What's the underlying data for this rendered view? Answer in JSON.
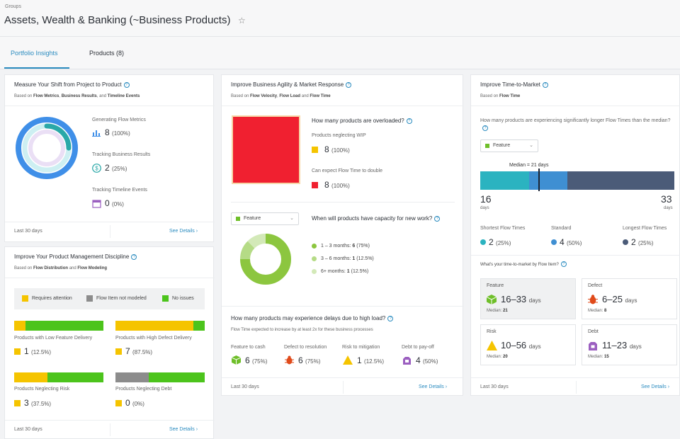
{
  "header": {
    "breadcrumb": "Groups",
    "title": "Assets, Wealth & Banking (~Business Products)"
  },
  "tabs": [
    {
      "label": "Portfolio Insights"
    },
    {
      "label": "Products (8)"
    }
  ],
  "colors": {
    "accent": "#2a8bbf",
    "attention": "#f5c400",
    "not_modeled": "#8c8c8c",
    "no_issues": "#4cc41c",
    "overload": "#f02030",
    "teal": "#2bb3c0",
    "blue": "#3f8fd2",
    "slate": "#4b5b78",
    "purple": "#9b5fc0"
  },
  "shift": {
    "title": "Measure Your Shift from Project to Product",
    "based_on": "Based on",
    "b1": "Flow Metrics",
    "sep1": ",",
    "b2": "Business Results",
    "sep2": ", and",
    "b3": "Timeline Events",
    "m1_label": "Generating Flow Metrics",
    "m1_value": "8",
    "m1_pct": "(100%)",
    "m2_label": "Tracking Business Results",
    "m2_value": "2",
    "m2_pct": "(25%)",
    "m3_label": "Tracking Timeline Events",
    "m3_value": "0",
    "m3_pct": "(0%)",
    "ring_fractions": [
      1.0,
      0.25,
      0.0
    ],
    "footer": "Last 30 days",
    "see_details": "See Details  ›"
  },
  "discipline": {
    "title": "Improve Your Product Management Discipline",
    "based_on": "Based on",
    "b1": "Flow Distribution",
    "sep1": "and",
    "b2": "Flow Modeling",
    "legend": [
      "Requires attention",
      "Flow Item not modeled",
      "No issues"
    ],
    "items": [
      {
        "label": "Products with Low Feature Delivery",
        "value": "1",
        "pct": "(12.5%)",
        "split": [
          0.125,
          0,
          0.875
        ],
        "color": "attention"
      },
      {
        "label": "Products with High Defect Delivery",
        "value": "7",
        "pct": "(87.5%)",
        "split": [
          0.875,
          0,
          0.125
        ],
        "color": "attention"
      },
      {
        "label": "Products Neglecting Risk",
        "value": "3",
        "pct": "(37.5%)",
        "split": [
          0.375,
          0,
          0.625
        ],
        "color": "attention"
      },
      {
        "label": "Products Neglecting Debt",
        "value": "0",
        "pct": "(0%)",
        "split": [
          0,
          0.375,
          0.625
        ],
        "color": "attention"
      }
    ],
    "footer": "Last 30 days",
    "see_details": "See Details  ›"
  },
  "agility": {
    "title": "Improve Business Agility & Market Response",
    "based_on": "Based on",
    "b1": "Flow Velocity",
    "sep1": ",",
    "b2": "Flow Load",
    "sep2": "and",
    "b3": "Flow Time",
    "overloaded_q": "How many products are overloaded?",
    "wip_label": "Products neglecting WIP",
    "wip_value": "8",
    "wip_pct": "(100%)",
    "double_label": "Can expect Flow Time to double",
    "double_value": "8",
    "double_pct": "(100%)",
    "dropdown": "Feature",
    "capacity_q": "When will products have capacity for new work?",
    "capacity": [
      {
        "range": "1 – 3 months:",
        "value": "6",
        "pct": "(75%)",
        "frac": 0.75,
        "color": "#8cc63f"
      },
      {
        "range": "3 – 6 months:",
        "value": "1",
        "pct": "(12.5%)",
        "frac": 0.125,
        "color": "#b5db86"
      },
      {
        "range": "6+ months:",
        "value": "1",
        "pct": "(12.5%)",
        "frac": 0.125,
        "color": "#d3e9b8"
      }
    ],
    "delays_q": "How many products may experience delays due to high load?",
    "delays_sub": "Flow Time expected to increase by at least 2x for these business processes",
    "delays": [
      {
        "label": "Feature to cash",
        "value": "6",
        "pct": "(75%)",
        "icon": "cube-icon"
      },
      {
        "label": "Defect to resolution",
        "value": "6",
        "pct": "(75%)",
        "icon": "bug-icon"
      },
      {
        "label": "Risk to mitigation",
        "value": "1",
        "pct": "(12.5%)",
        "icon": "warning-icon"
      },
      {
        "label": "Debt to pay-off",
        "value": "4",
        "pct": "(50%)",
        "icon": "debt-icon"
      }
    ],
    "footer": "Last 30 days",
    "see_details": "See Details  ›"
  },
  "ttm": {
    "title": "Improve Time-to-Market",
    "based_on": "Based on",
    "b1": "Flow Time",
    "question": "How many products are experiencing significantly longer Flow Times than the median?",
    "dropdown": "Feature",
    "median_label": "Median = 21 days",
    "min_value": "16",
    "min_unit": "days",
    "max_value": "33",
    "max_unit": "days",
    "bar_split": [
      0.25,
      0.2,
      0.55
    ],
    "median_frac": 0.3,
    "short_label": "Shortest Flow Times",
    "short_value": "2",
    "short_pct": "(25%)",
    "std_label": "Standard",
    "std_value": "4",
    "std_pct": "(50%)",
    "long_label": "Longest Flow Times",
    "long_value": "2",
    "long_pct": "(25%)",
    "by_item_q": "What's your time-to-market by Flow Item?",
    "tiles": [
      {
        "label": "Feature",
        "range": "16–33",
        "unit": "days",
        "median_label": "Median:",
        "median": "21",
        "icon": "cube-icon"
      },
      {
        "label": "Defect",
        "range": "6–25",
        "unit": "days",
        "median_label": "Median:",
        "median": "8",
        "icon": "bug-icon"
      },
      {
        "label": "Risk",
        "range": "10–56",
        "unit": "days",
        "median_label": "Median:",
        "median": "20",
        "icon": "warning-icon"
      },
      {
        "label": "Debt",
        "range": "11–23",
        "unit": "days",
        "median_label": "Median:",
        "median": "15",
        "icon": "debt-icon"
      }
    ],
    "footer": "Last 30 days",
    "see_details": "See Details  ›"
  }
}
